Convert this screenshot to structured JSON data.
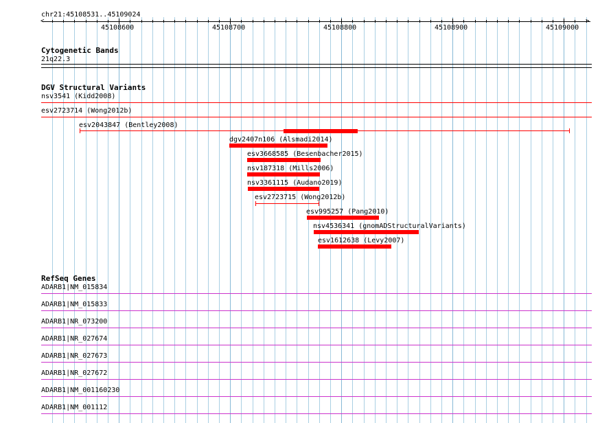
{
  "ruler": {
    "range_label": "chr21:45108531..45109024",
    "tick_labels": [
      "45108600",
      "45108700",
      "45108800",
      "45108900",
      "45109000"
    ]
  },
  "tracks": {
    "cytoband": {
      "title": "Cytogenetic Bands",
      "band": "21q22.3"
    },
    "dgv": {
      "title": "DGV Structural Variants",
      "features": [
        {
          "label": "nsv3541 (Kidd2008)"
        },
        {
          "label": "esv2723714 (Wong2012b)"
        },
        {
          "label": "esv2043847 (Bentley2008)"
        },
        {
          "label": "dgv2407n106 (Alsmadi2014)"
        },
        {
          "label": "esv3668585 (Besenbacher2015)"
        },
        {
          "label": "nsv187318 (Mills2006)"
        },
        {
          "label": "nsv3361115 (Audano2019)"
        },
        {
          "label": "esv2723715 (Wong2012b)"
        },
        {
          "label": "esv995257 (Pang2010)"
        },
        {
          "label": "nsv4536341 (gnomADStructuralVariants)"
        },
        {
          "label": "esv1612638 (Levy2007)"
        }
      ]
    },
    "refseq": {
      "title": "RefSeq Genes",
      "transcripts": [
        "ADARB1|NM_015834",
        "ADARB1|NM_015833",
        "ADARB1|NR_073200",
        "ADARB1|NR_027674",
        "ADARB1|NR_027673",
        "ADARB1|NR_027672",
        "ADARB1|NM_001160230",
        "ADARB1|NM_001112"
      ]
    }
  },
  "colors": {
    "grid": "#a9cfe3",
    "variant": "#ff0000",
    "transcript": "#cc33cc",
    "ruler": "#000000"
  }
}
